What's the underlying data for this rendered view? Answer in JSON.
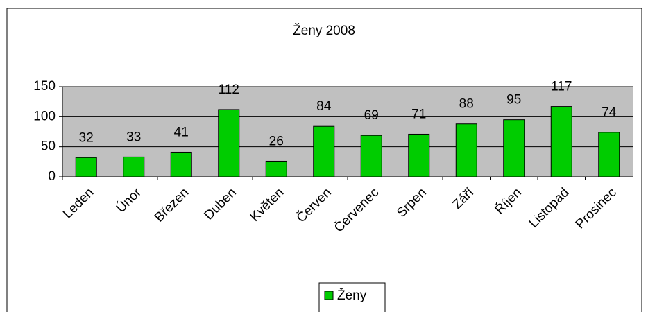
{
  "chart_data": {
    "type": "bar",
    "title": "Ženy 2008",
    "categories": [
      "Leden",
      "Únor",
      "Březen",
      "Duben",
      "Květen",
      "Červen",
      "Červenec",
      "Srpen",
      "Září",
      "Říjen",
      "Listopad",
      "Prosinec"
    ],
    "series": [
      {
        "name": "Ženy",
        "color": "#00cc00",
        "values": [
          32,
          33,
          41,
          112,
          26,
          84,
          69,
          71,
          88,
          95,
          117,
          74
        ]
      }
    ],
    "ylim": [
      0,
      150
    ],
    "yticks": [
      0,
      50,
      100,
      150
    ],
    "grid": true,
    "legend": "bottom"
  }
}
